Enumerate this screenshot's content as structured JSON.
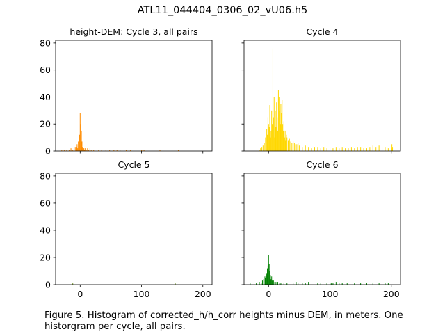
{
  "figure": {
    "title": "ATL11_044404_0306_02_vU06.h5",
    "caption": "Figure 5. Histogram of corrected_h/h_corr heights minus DEM, in meters. One historgram per cycle, all pairs."
  },
  "chart_data": [
    {
      "type": "bar",
      "title": "height-DEM: Cycle 3, all pairs",
      "color": "#ff8c00",
      "xlim": [
        -40,
        215
      ],
      "ylim": [
        0,
        82
      ],
      "xticks": [
        0,
        100,
        200
      ],
      "yticks": [
        0,
        20,
        40,
        60,
        80
      ],
      "x": [
        -30,
        -26,
        -22,
        -18,
        -15,
        -12,
        -10,
        -8,
        -6,
        -5,
        -4,
        -3,
        -2,
        -1,
        0,
        1,
        2,
        3,
        4,
        5,
        6,
        7,
        8,
        10,
        12,
        14,
        16,
        18,
        22,
        30,
        35,
        42,
        48,
        55,
        60,
        65,
        75,
        82,
        100,
        102,
        104,
        130,
        160
      ],
      "values": [
        1,
        1,
        1,
        1,
        2,
        1,
        2,
        3,
        3,
        5,
        2,
        7,
        6,
        12,
        28,
        20,
        15,
        7,
        3,
        2,
        2,
        1,
        2,
        1,
        2,
        1,
        2,
        1,
        1,
        1,
        1,
        1,
        1,
        1,
        1,
        1,
        1,
        1,
        1,
        1,
        1,
        1,
        1
      ]
    },
    {
      "type": "bar",
      "title": "Cycle 4",
      "color": "#ffd700",
      "xlim": [
        -40,
        215
      ],
      "ylim": [
        0,
        82
      ],
      "xticks": [
        0,
        100,
        200
      ],
      "yticks": [
        0,
        20,
        40,
        60,
        80
      ],
      "x": [
        -15,
        -13,
        -11,
        -9,
        -7,
        -5,
        -3,
        -2,
        -1,
        0,
        1,
        2,
        3,
        4,
        5,
        6,
        7,
        8,
        9,
        10,
        11,
        12,
        13,
        14,
        15,
        16,
        17,
        18,
        19,
        20,
        21,
        22,
        23,
        24,
        25,
        26,
        27,
        28,
        29,
        30,
        32,
        34,
        36,
        38,
        40,
        42,
        44,
        46,
        48,
        50,
        55,
        60,
        65,
        70,
        75,
        80,
        85,
        90,
        95,
        100,
        105,
        110,
        115,
        120,
        125,
        130,
        135,
        140,
        145,
        150,
        155,
        160,
        165,
        170,
        175,
        180,
        185,
        190,
        195,
        200,
        201,
        202
      ],
      "values": [
        1,
        2,
        3,
        4,
        6,
        10,
        16,
        12,
        25,
        20,
        18,
        34,
        10,
        15,
        30,
        20,
        76,
        25,
        40,
        10,
        30,
        18,
        36,
        25,
        15,
        45,
        40,
        30,
        20,
        35,
        28,
        38,
        20,
        15,
        22,
        10,
        15,
        8,
        12,
        10,
        8,
        9,
        7,
        6,
        7,
        6,
        5,
        5,
        6,
        4,
        3,
        4,
        3,
        2,
        3,
        3,
        2,
        3,
        2,
        3,
        2,
        3,
        2,
        3,
        2,
        2,
        3,
        2,
        3,
        3,
        2,
        2,
        3,
        4,
        3,
        4,
        3,
        3,
        2,
        2,
        5,
        3
      ]
    },
    {
      "type": "bar",
      "title": "Cycle 5",
      "color": "#6b8e23",
      "xlim": [
        -40,
        215
      ],
      "ylim": [
        0,
        82
      ],
      "xticks": [
        0,
        100,
        200
      ],
      "yticks": [
        0,
        20,
        40,
        60,
        80
      ],
      "x": [
        -12,
        155
      ],
      "values": [
        1,
        1
      ]
    },
    {
      "type": "bar",
      "title": "Cycle 6",
      "color": "#008000",
      "xlim": [
        -40,
        215
      ],
      "ylim": [
        0,
        82
      ],
      "xticks": [
        0,
        100,
        200
      ],
      "yticks": [
        0,
        20,
        40,
        60,
        80
      ],
      "x": [
        -30,
        -20,
        -15,
        -12,
        -10,
        -8,
        -6,
        -5,
        -4,
        -3,
        -2,
        -1,
        0,
        1,
        2,
        3,
        4,
        5,
        6,
        8,
        10,
        12,
        15,
        18,
        20,
        25,
        30,
        40,
        45,
        48,
        55,
        60,
        65,
        80,
        85,
        95,
        100,
        102,
        105,
        110,
        115,
        120,
        128,
        140,
        150,
        160,
        170,
        180,
        190,
        195
      ],
      "values": [
        1,
        1,
        2,
        1,
        3,
        4,
        6,
        5,
        7,
        8,
        12,
        14,
        22,
        15,
        10,
        7,
        4,
        6,
        3,
        3,
        2,
        2,
        2,
        1,
        1,
        1,
        1,
        1,
        2,
        1,
        1,
        1,
        2,
        1,
        1,
        1,
        1,
        1,
        1,
        2,
        1,
        1,
        1,
        1,
        1,
        1,
        1,
        1,
        1,
        1
      ]
    }
  ]
}
